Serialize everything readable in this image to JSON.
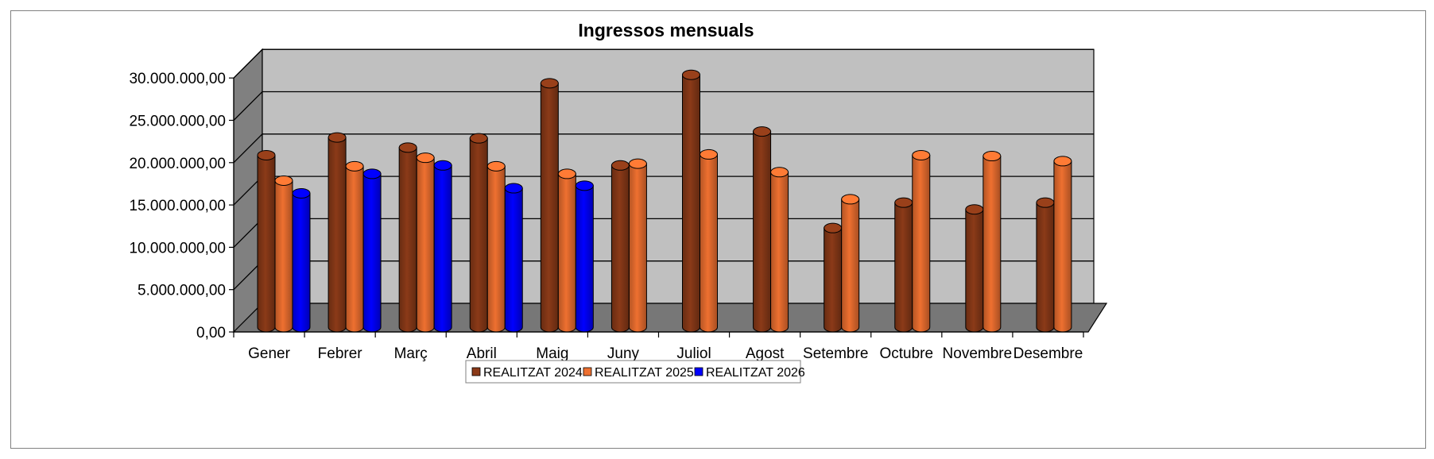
{
  "chart_data": {
    "type": "bar",
    "title": "Ingressos mensuals",
    "xlabel": "",
    "ylabel": "",
    "ylim": [
      0,
      30000000
    ],
    "yticks": [
      "0,00",
      "5.000.000,00",
      "10.000.000,00",
      "15.000.000,00",
      "20.000.000,00",
      "25.000.000,00",
      "30.000.000,00"
    ],
    "categories": [
      "Gener",
      "Febrer",
      "Març",
      "Abril",
      "Maig",
      "Juny",
      "Juliol",
      "Agost",
      "Setembre",
      "Octubre",
      "Novembre",
      "Desembre"
    ],
    "series": [
      {
        "name": "REALITZAT 2024",
        "color": "#8B3A18",
        "values": [
          20500000,
          22600000,
          21400000,
          22500000,
          29000000,
          19300000,
          30000000,
          23300000,
          11900000,
          14900000,
          14100000,
          14900000
        ]
      },
      {
        "name": "REALITZAT 2025",
        "color": "#EE7030",
        "values": [
          17500000,
          19200000,
          20200000,
          19200000,
          18300000,
          19500000,
          20600000,
          18500000,
          15300000,
          20500000,
          20400000,
          19800000
        ]
      },
      {
        "name": "REALITZAT 2026",
        "color": "#0000FF",
        "values": [
          16000000,
          18300000,
          19300000,
          16600000,
          16900000,
          null,
          null,
          null,
          null,
          null,
          null,
          null
        ]
      }
    ],
    "grid": true,
    "legend": "bottom",
    "style": "3d-cylinder"
  }
}
